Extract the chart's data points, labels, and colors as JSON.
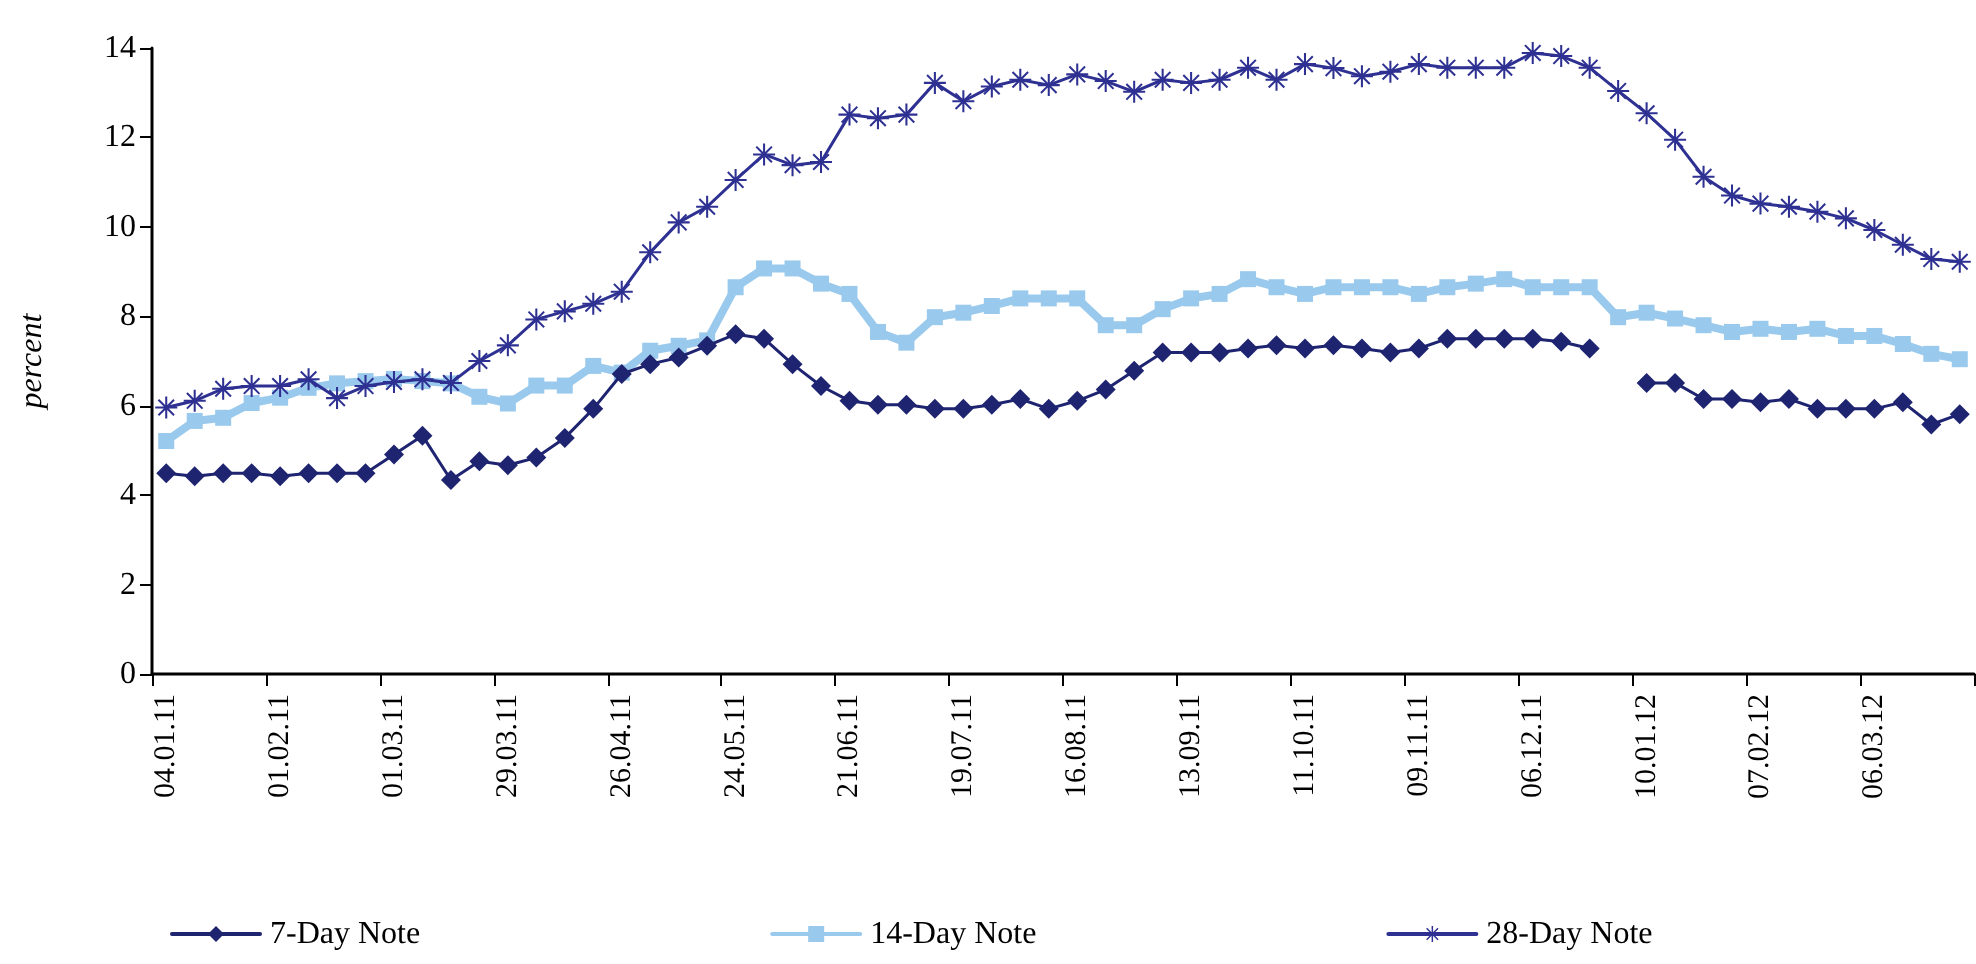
{
  "chart_data": {
    "type": "line",
    "ylabel": "percent",
    "categories": [
      "04.01.11",
      null,
      null,
      null,
      "01.02.11",
      null,
      null,
      null,
      "01.03.11",
      null,
      null,
      null,
      "29.03.11",
      null,
      null,
      null,
      "26.04.11",
      null,
      null,
      null,
      "24.05.11",
      null,
      null,
      null,
      "21.06.11",
      null,
      null,
      null,
      "19.07.11",
      null,
      null,
      null,
      "16.08.11",
      null,
      null,
      null,
      "13.09.11",
      null,
      null,
      null,
      "11.10.11",
      null,
      null,
      null,
      "09.11.11",
      null,
      null,
      null,
      "06.12.11",
      null,
      null,
      null,
      "10.01.12",
      null,
      null,
      null,
      "07.02.12",
      null,
      null,
      null,
      "06.03.12",
      null,
      null,
      null
    ],
    "series": [
      {
        "name": "7-Day Note",
        "color": "#1f2471",
        "marker": "diamond",
        "values": [
          4.49,
          4.42,
          4.49,
          4.49,
          4.42,
          4.49,
          4.49,
          4.49,
          4.91,
          5.33,
          4.34,
          4.76,
          4.67,
          4.84,
          5.28,
          5.93,
          6.71,
          6.93,
          7.08,
          7.34,
          7.6,
          7.5,
          6.93,
          6.44,
          6.11,
          6.02,
          6.02,
          5.93,
          5.93,
          6.02,
          6.15,
          5.93,
          6.11,
          6.36,
          6.78,
          7.19,
          7.19,
          7.19,
          7.28,
          7.35,
          7.28,
          7.35,
          7.28,
          7.19,
          7.28,
          7.5,
          7.5,
          7.5,
          7.5,
          7.43,
          7.28,
          null,
          6.51,
          6.51,
          6.15,
          6.15,
          6.08,
          6.15,
          5.93,
          5.93,
          5.93,
          6.08,
          5.58,
          5.81
        ]
      },
      {
        "name": "14-Day Note",
        "color": "#99c9ec",
        "marker": "square",
        "values": [
          5.21,
          5.66,
          5.73,
          6.06,
          6.18,
          6.4,
          6.5,
          6.55,
          6.6,
          6.55,
          6.5,
          6.2,
          6.05,
          6.45,
          6.45,
          6.89,
          6.74,
          7.23,
          7.34,
          7.46,
          8.65,
          9.07,
          9.07,
          8.73,
          8.5,
          7.65,
          7.41,
          7.98,
          8.08,
          8.23,
          8.4,
          8.4,
          8.4,
          7.8,
          7.8,
          8.16,
          8.4,
          8.5,
          8.83,
          8.65,
          8.5,
          8.65,
          8.65,
          8.65,
          8.5,
          8.65,
          8.73,
          8.83,
          8.65,
          8.65,
          8.65,
          7.98,
          8.08,
          7.95,
          7.8,
          7.65,
          7.72,
          7.65,
          7.72,
          7.56,
          7.56,
          7.38,
          7.16,
          7.04
        ]
      },
      {
        "name": "28-Day Note",
        "color": "#2e3192",
        "marker": "star",
        "values": [
          5.96,
          6.11,
          6.38,
          6.44,
          6.44,
          6.59,
          6.17,
          6.44,
          6.53,
          6.59,
          6.51,
          7.0,
          7.35,
          7.93,
          8.11,
          8.28,
          8.55,
          9.43,
          10.1,
          10.45,
          11.05,
          11.62,
          11.38,
          11.45,
          12.51,
          12.43,
          12.51,
          13.22,
          12.81,
          13.14,
          13.29,
          13.17,
          13.41,
          13.26,
          13.02,
          13.29,
          13.22,
          13.29,
          13.56,
          13.29,
          13.64,
          13.55,
          13.37,
          13.47,
          13.64,
          13.56,
          13.56,
          13.56,
          13.89,
          13.82,
          13.56,
          13.04,
          12.54,
          11.95,
          11.12,
          10.7,
          10.52,
          10.45,
          10.34,
          10.19,
          9.93,
          9.6,
          9.28,
          9.22
        ]
      }
    ],
    "ylim": [
      0,
      14
    ],
    "yticks": [
      0,
      2,
      4,
      6,
      8,
      10,
      12,
      14
    ],
    "grid": false,
    "legend": "bottom"
  }
}
